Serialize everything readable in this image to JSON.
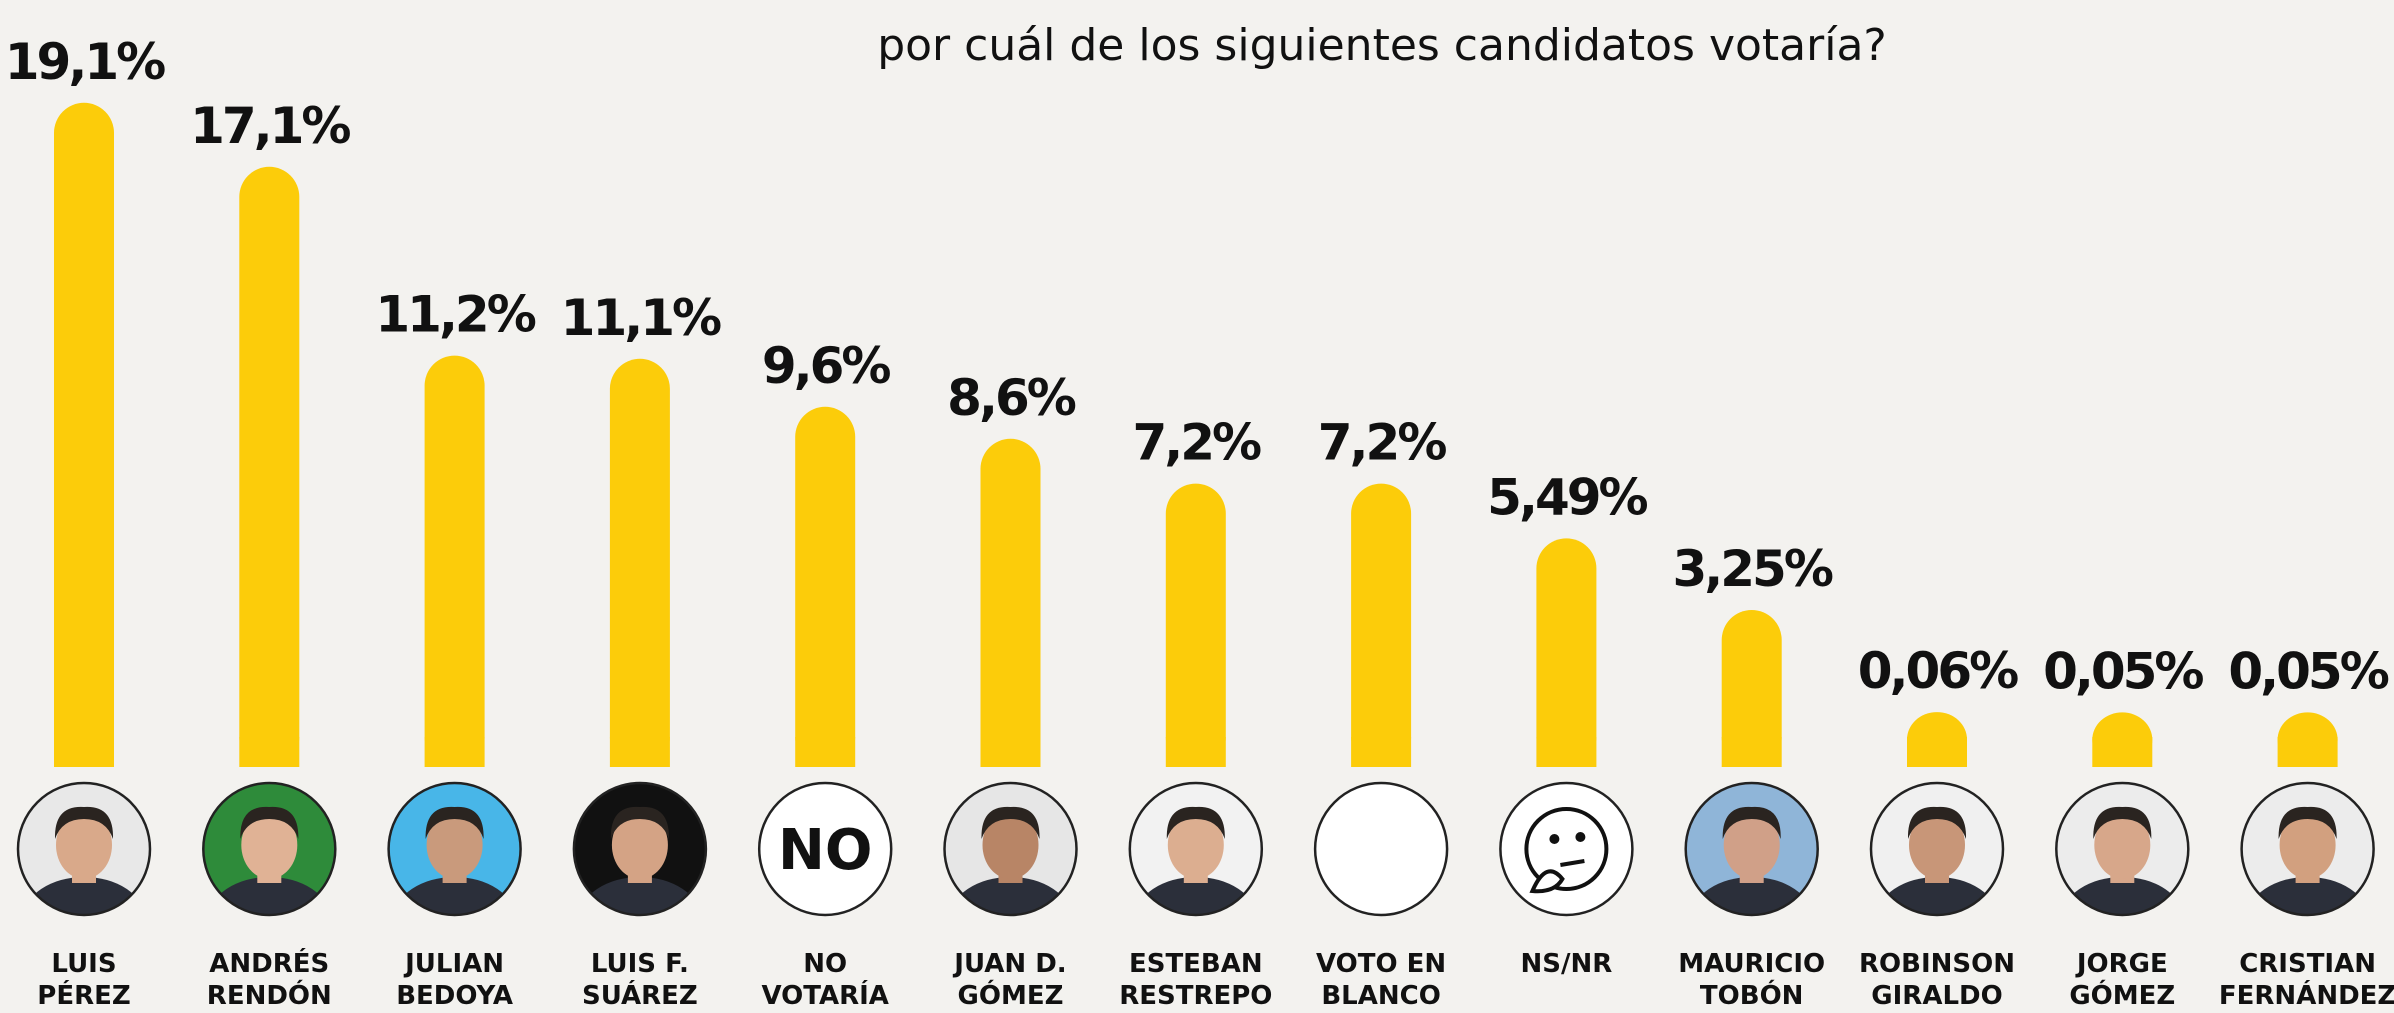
{
  "chart_data": {
    "type": "bar",
    "title": "por cuál de los siguientes candidatos votaría?",
    "categories": [
      "LUIS\nPÉREZ",
      "ANDRÉS\nRENDÓN",
      "JULIAN\nBEDOYA",
      "LUIS F.\nSUÁREZ",
      "NO\nVOTARÍA",
      "JUAN D.\nGÓMEZ",
      "ESTEBAN\nRESTREPO",
      "VOTO EN\nBLANCO",
      "NS/NR",
      "MAURICIO\nTOBÓN",
      "ROBINSON\nGIRALDO",
      "JORGE\nGÓMEZ",
      "CRISTIAN\nFERNÁNDEZ"
    ],
    "values": [
      19.1,
      17.1,
      11.2,
      11.1,
      9.6,
      8.6,
      7.2,
      7.2,
      5.49,
      3.25,
      0.06,
      0.05,
      0.05
    ],
    "value_labels": [
      "19,1%",
      "17,1%",
      "11,2%",
      "11,1%",
      "9,6%",
      "8,6%",
      "7,2%",
      "7,2%",
      "5,49%",
      "3,25%",
      "0,06%",
      "0,05%",
      "0,05%"
    ],
    "color": "#fccc0a",
    "annotations": [
      "NO"
    ]
  }
}
